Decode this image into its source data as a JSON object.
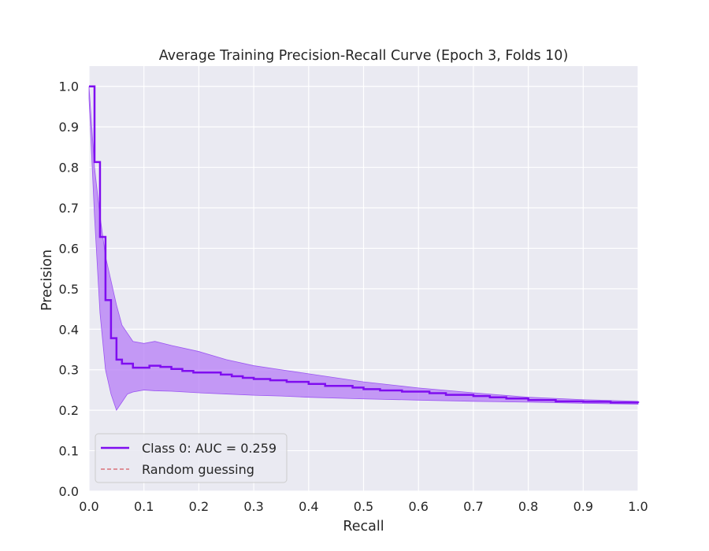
{
  "chart_data": {
    "type": "line",
    "title": "Average Training Precision-Recall Curve (Epoch 3, Folds 10)",
    "xlabel": "Recall",
    "ylabel": "Precision",
    "xlim": [
      0.0,
      1.0
    ],
    "ylim": [
      0.0,
      1.05
    ],
    "x_ticks": [
      "0.0",
      "0.1",
      "0.2",
      "0.3",
      "0.4",
      "0.5",
      "0.6",
      "0.7",
      "0.8",
      "0.9",
      "1.0"
    ],
    "y_ticks": [
      "0.0",
      "0.1",
      "0.2",
      "0.3",
      "0.4",
      "0.5",
      "0.6",
      "0.7",
      "0.8",
      "0.9",
      "1.0"
    ],
    "grid": true,
    "legend_location": "lower-left",
    "colors": {
      "plot_background": "#eaeaf2",
      "grid": "#ffffff",
      "mean_line": "#7f0df0",
      "band_fill": "#b67cf5",
      "band_edge": "#9b55f2",
      "random": "#d9727a"
    },
    "series": [
      {
        "name": "Class 0: AUC = 0.259",
        "style": "step",
        "x": [
          0.0,
          0.01,
          0.02,
          0.03,
          0.04,
          0.05,
          0.06,
          0.08,
          0.11,
          0.13,
          0.15,
          0.17,
          0.19,
          0.24,
          0.26,
          0.28,
          0.3,
          0.33,
          0.36,
          0.4,
          0.43,
          0.48,
          0.5,
          0.53,
          0.57,
          0.62,
          0.65,
          0.7,
          0.73,
          0.76,
          0.8,
          0.85,
          0.9,
          0.95,
          1.0
        ],
        "y": [
          1.0,
          0.813,
          0.628,
          0.472,
          0.378,
          0.325,
          0.315,
          0.305,
          0.31,
          0.307,
          0.302,
          0.297,
          0.293,
          0.288,
          0.284,
          0.28,
          0.277,
          0.274,
          0.27,
          0.265,
          0.26,
          0.256,
          0.252,
          0.249,
          0.246,
          0.242,
          0.238,
          0.235,
          0.232,
          0.229,
          0.225,
          0.222,
          0.221,
          0.219,
          0.218
        ]
      },
      {
        "name": "Random guessing",
        "style": "dashed",
        "x": [],
        "y": []
      }
    ],
    "band": {
      "x": [
        0.0,
        0.01,
        0.02,
        0.03,
        0.04,
        0.05,
        0.06,
        0.07,
        0.08,
        0.1,
        0.12,
        0.15,
        0.2,
        0.25,
        0.3,
        0.35,
        0.4,
        0.5,
        0.6,
        0.7,
        0.8,
        0.9,
        1.0
      ],
      "upper": [
        1.0,
        0.8,
        0.68,
        0.58,
        0.52,
        0.46,
        0.41,
        0.39,
        0.37,
        0.365,
        0.37,
        0.36,
        0.345,
        0.325,
        0.31,
        0.3,
        0.29,
        0.27,
        0.255,
        0.243,
        0.232,
        0.226,
        0.222
      ],
      "lower": [
        0.97,
        0.68,
        0.44,
        0.3,
        0.24,
        0.2,
        0.22,
        0.24,
        0.245,
        0.25,
        0.248,
        0.247,
        0.243,
        0.24,
        0.237,
        0.235,
        0.232,
        0.228,
        0.225,
        0.222,
        0.22,
        0.217,
        0.215
      ]
    }
  }
}
